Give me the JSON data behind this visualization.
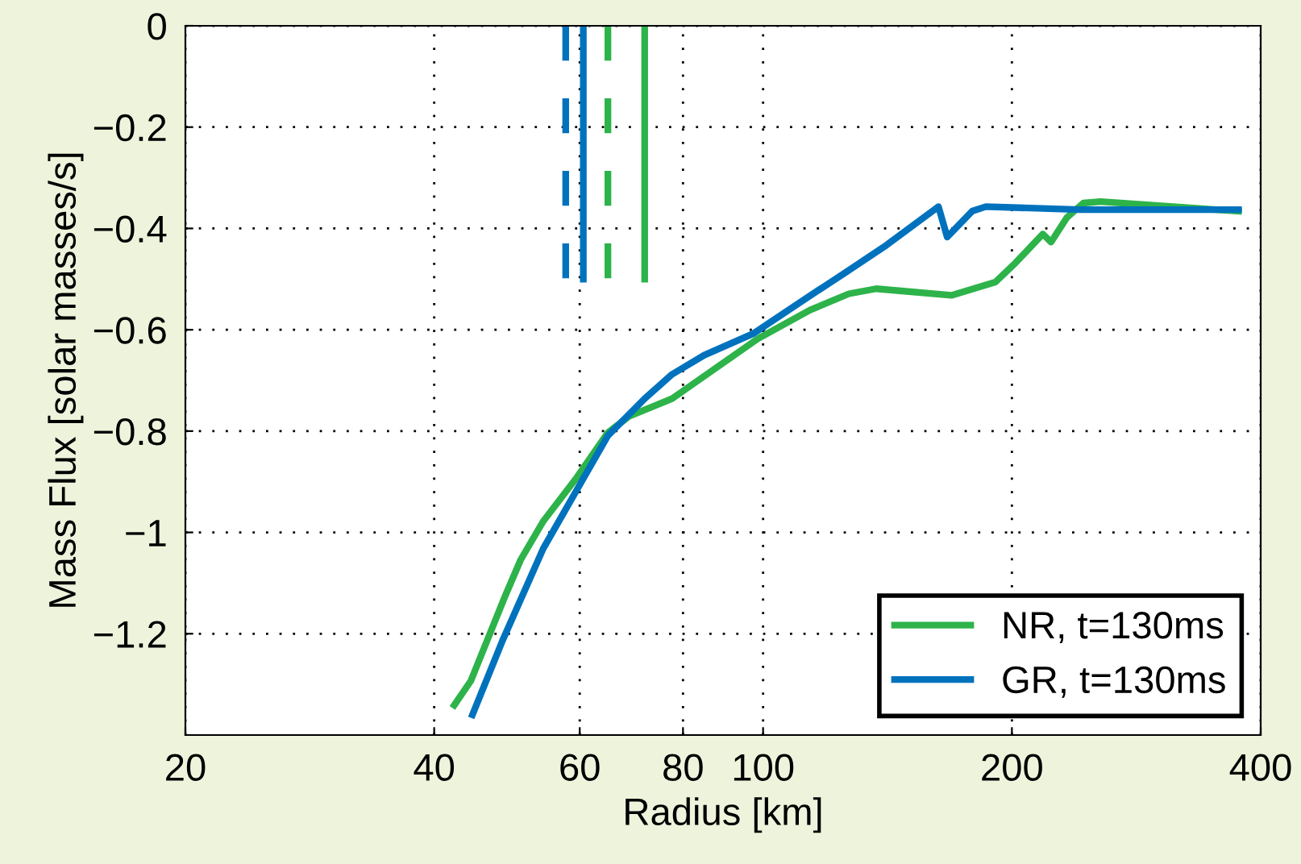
{
  "chart_data": {
    "type": "line",
    "xlabel": "Radius [km]",
    "ylabel": "Mass Flux [solar masses/s]",
    "log": "x",
    "grid": true,
    "legend": "bottom right",
    "line_style": "solid",
    "marker": "none",
    "xlim": [
      20,
      400
    ],
    "xticks": [
      20,
      40,
      60,
      80,
      100,
      200,
      400
    ],
    "ylim": [
      -1.4,
      0
    ],
    "yticks": [
      0,
      {
        "value": -0.2,
        "label": "−0.2"
      },
      {
        "value": -0.4,
        "label": "−0.4"
      },
      {
        "value": -0.6,
        "label": "−0.6"
      },
      {
        "value": -0.8,
        "label": "−0.8"
      },
      {
        "value": -1,
        "label": "−1"
      },
      {
        "value": -1.2,
        "label": "−1.2"
      }
    ],
    "series": [
      {
        "name": "NR, t=130ms",
        "color": "#2db34a",
        "x": [
          42.3,
          44.3,
          48.7,
          50.9,
          54.2,
          59.3,
          64.9,
          68.8,
          77.6,
          98.5,
          114,
          127,
          137,
          169,
          191,
          202,
          218,
          223,
          233,
          244,
          256,
          376
        ],
        "values": [
          -1.341,
          -1.293,
          -1.127,
          -1.054,
          -0.978,
          -0.895,
          -0.803,
          -0.771,
          -0.736,
          -0.618,
          -0.561,
          -0.529,
          -0.519,
          -0.532,
          -0.506,
          -0.468,
          -0.411,
          -0.427,
          -0.379,
          -0.35,
          -0.347,
          -0.366
        ]
      },
      {
        "name": "GR, t=130ms",
        "color": "#0072bd",
        "x": [
          44.5,
          48.4,
          54.2,
          60.1,
          64.9,
          71.9,
          77.6,
          84.9,
          97.2,
          112.7,
          125,
          141,
          163,
          167,
          179,
          186,
          242,
          376
        ],
        "values": [
          -1.36,
          -1.213,
          -1.032,
          -0.904,
          -0.809,
          -0.736,
          -0.688,
          -0.65,
          -0.608,
          -0.538,
          -0.49,
          -0.433,
          -0.357,
          -0.417,
          -0.366,
          -0.357,
          -0.363,
          -0.363
        ]
      },
      {
        "color": "#0072bd",
        "line_style": "dashed",
        "x": [
          57.7,
          57.7
        ],
        "values": [
          0,
          -0.5
        ]
      },
      {
        "color": "#0072bd",
        "x": [
          60.6,
          60.6
        ],
        "values": [
          0,
          -0.5
        ]
      },
      {
        "color": "#2db34a",
        "line_style": "dashed",
        "x": [
          64.9,
          64.9
        ],
        "values": [
          0,
          -0.5
        ]
      },
      {
        "color": "#2db34a",
        "x": [
          71.9,
          71.9
        ],
        "values": [
          0,
          -0.5
        ]
      }
    ]
  }
}
